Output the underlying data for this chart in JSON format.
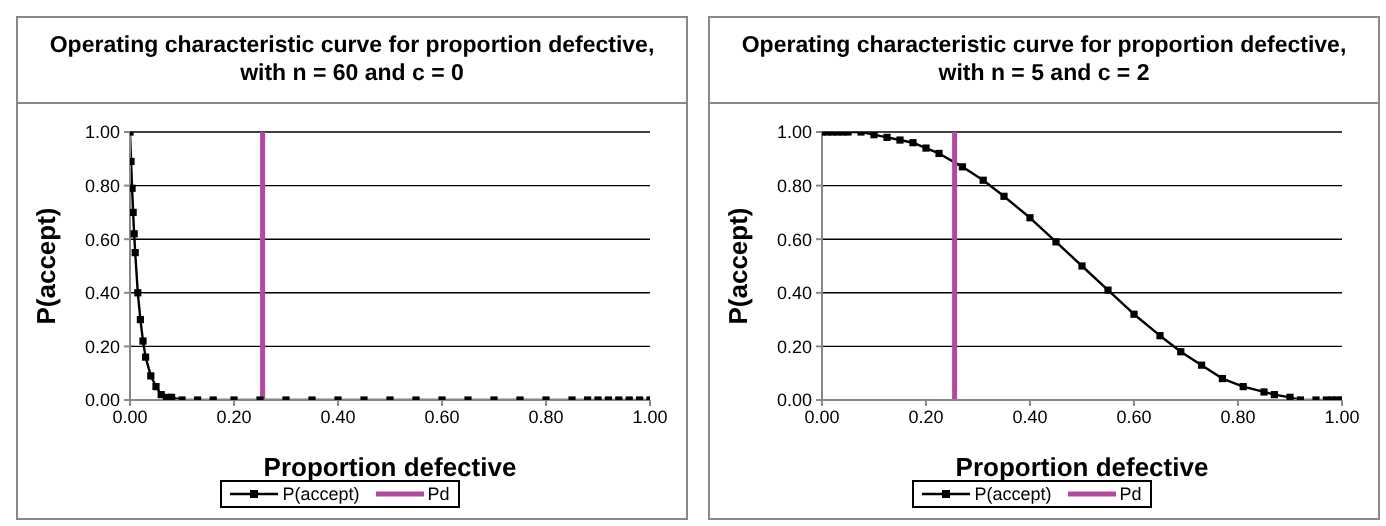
{
  "chart_data": [
    {
      "type": "line",
      "title": "Operating characteristic curve for proportion defective, with n = 60 and c = 0",
      "xlabel": "Proportion defective",
      "ylabel": "P(accept)",
      "xlim": [
        0,
        1
      ],
      "ylim": [
        0,
        1
      ],
      "xticks": [
        {
          "value": 0,
          "label": "0.00"
        },
        {
          "value": 0.2,
          "label": "0.20"
        },
        {
          "value": 0.4,
          "label": "0.40"
        },
        {
          "value": 0.6,
          "label": "0.60"
        },
        {
          "value": 0.8,
          "label": "0.80"
        },
        {
          "value": 1,
          "label": "1.00"
        }
      ],
      "yticks": [
        {
          "value": 0,
          "label": "0.00"
        },
        {
          "value": 0.2,
          "label": "0.20"
        },
        {
          "value": 0.4,
          "label": "0.40"
        },
        {
          "value": 0.6,
          "label": "0.60"
        },
        {
          "value": 0.8,
          "label": "0.80"
        },
        {
          "value": 1,
          "label": "1.00"
        }
      ],
      "grid": "y",
      "legend": "bottom",
      "line_style": "solid",
      "series": [
        {
          "name": "P(accept)",
          "color": "#000000",
          "marker": "square",
          "x": [
            0,
            0.002,
            0.004,
            0.006,
            0.008,
            0.01,
            0.015,
            0.02,
            0.025,
            0.03,
            0.04,
            0.05,
            0.06,
            0.07,
            0.08,
            0.1,
            0.13,
            0.16,
            0.2,
            0.25,
            0.3,
            0.35,
            0.4,
            0.45,
            0.5,
            0.55,
            0.6,
            0.65,
            0.7,
            0.75,
            0.8,
            0.85,
            0.88,
            0.9,
            0.92,
            0.94,
            0.96,
            0.98,
            1
          ],
          "values": [
            1,
            0.89,
            0.79,
            0.7,
            0.62,
            0.55,
            0.4,
            0.3,
            0.22,
            0.16,
            0.09,
            0.05,
            0.02,
            0.01,
            0.01,
            0,
            0,
            0,
            0,
            0,
            0,
            0,
            0,
            0,
            0,
            0,
            0,
            0,
            0,
            0,
            0,
            0,
            0,
            0,
            0,
            0,
            0,
            0,
            0
          ]
        },
        {
          "name": "Pd",
          "color": "#b5479f",
          "marker": "none",
          "x": [
            0.255,
            0.255
          ],
          "values": [
            0,
            1
          ]
        }
      ]
    },
    {
      "type": "line",
      "title": "Operating characteristic curve for proportion defective, with n = 5 and c = 2",
      "xlabel": "Proportion defective",
      "ylabel": "P(accept)",
      "xlim": [
        0,
        1
      ],
      "ylim": [
        0,
        1
      ],
      "xticks": [
        {
          "value": 0,
          "label": "0.00"
        },
        {
          "value": 0.2,
          "label": "0.20"
        },
        {
          "value": 0.4,
          "label": "0.40"
        },
        {
          "value": 0.6,
          "label": "0.60"
        },
        {
          "value": 0.8,
          "label": "0.80"
        },
        {
          "value": 1,
          "label": "1.00"
        }
      ],
      "yticks": [
        {
          "value": 0,
          "label": "0.00"
        },
        {
          "value": 0.2,
          "label": "0.20"
        },
        {
          "value": 0.4,
          "label": "0.40"
        },
        {
          "value": 0.6,
          "label": "0.60"
        },
        {
          "value": 0.8,
          "label": "0.80"
        },
        {
          "value": 1,
          "label": "1.00"
        }
      ],
      "grid": "y",
      "legend": "bottom",
      "line_style": "solid",
      "series": [
        {
          "name": "P(accept)",
          "color": "#000000",
          "marker": "square",
          "x": [
            0,
            0.01,
            0.02,
            0.03,
            0.04,
            0.05,
            0.075,
            0.1,
            0.125,
            0.15,
            0.175,
            0.2,
            0.225,
            0.27,
            0.31,
            0.35,
            0.4,
            0.45,
            0.5,
            0.55,
            0.6,
            0.65,
            0.69,
            0.73,
            0.77,
            0.81,
            0.85,
            0.87,
            0.9,
            0.92,
            0.95,
            0.97,
            0.98,
            0.99,
            1
          ],
          "values": [
            1,
            1,
            1,
            1,
            1,
            1,
            1,
            0.99,
            0.98,
            0.97,
            0.96,
            0.94,
            0.92,
            0.87,
            0.82,
            0.76,
            0.68,
            0.59,
            0.5,
            0.41,
            0.32,
            0.24,
            0.18,
            0.13,
            0.08,
            0.05,
            0.03,
            0.02,
            0.01,
            0,
            0,
            0,
            0,
            0,
            0
          ]
        },
        {
          "name": "Pd",
          "color": "#b5479f",
          "marker": "none",
          "x": [
            0.255,
            0.255
          ],
          "values": [
            0,
            1
          ]
        }
      ]
    }
  ]
}
